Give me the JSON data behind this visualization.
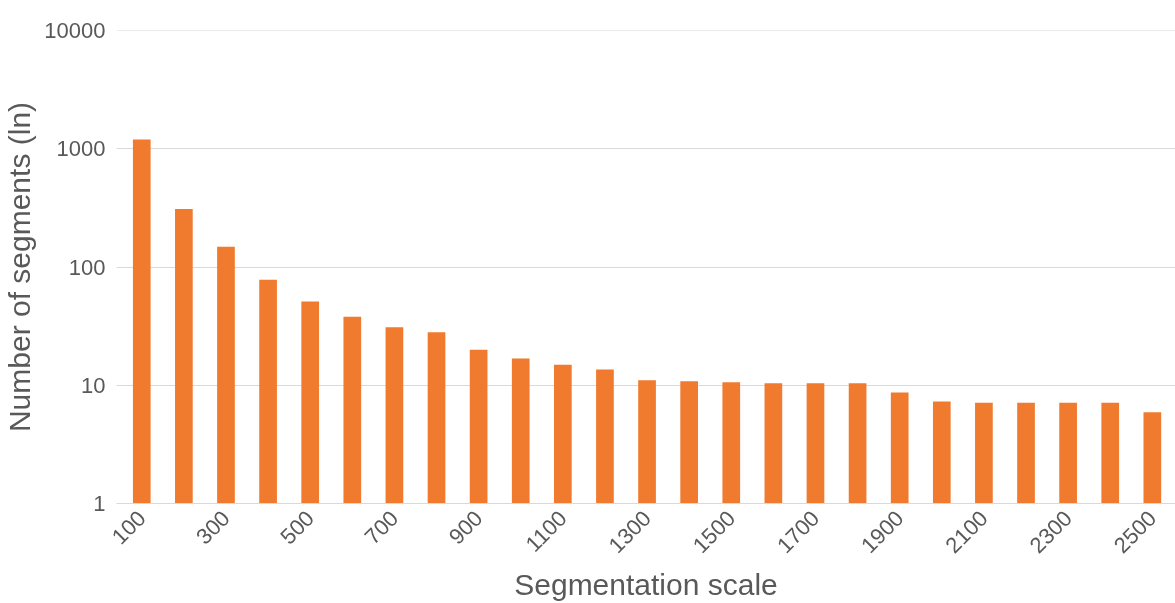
{
  "chart_data": {
    "type": "bar",
    "xlabel": "Segmentation scale",
    "ylabel": "Number of segments (ln)",
    "categories": [
      "100",
      null,
      "300",
      null,
      "500",
      null,
      "700",
      null,
      "900",
      null,
      "1100",
      null,
      "1300",
      null,
      "1500",
      null,
      "1700",
      null,
      "1900",
      null,
      "2100",
      null,
      "2300",
      null,
      "2500"
    ],
    "values": [
      1200,
      310,
      148,
      78,
      51,
      38,
      31,
      28,
      20,
      16.8,
      14.9,
      13.6,
      11,
      10.8,
      10.6,
      10.4,
      10.4,
      10.4,
      8.7,
      7.3,
      7.1,
      7.1,
      7.1,
      7.1,
      5.9
    ],
    "color": "#f07a2e",
    "log": "y",
    "ylim": [
      1,
      10000
    ],
    "yticks": [
      1,
      10,
      100,
      1000,
      10000
    ],
    "grid": "y"
  }
}
